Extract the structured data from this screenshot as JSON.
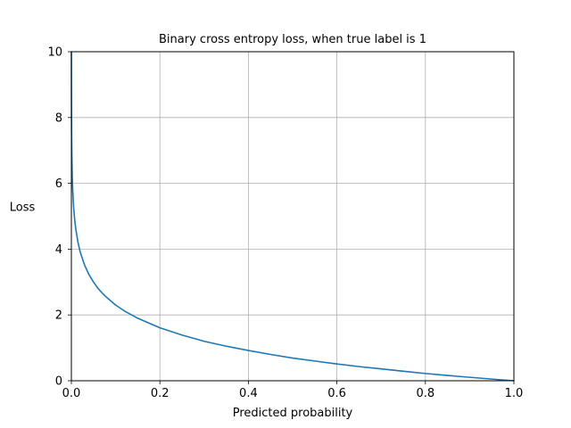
{
  "chart_data": {
    "type": "line",
    "title": "Binary cross entropy loss, when true label is 1",
    "xlabel": "Predicted probability",
    "ylabel": "Loss",
    "xlim": [
      0,
      1
    ],
    "ylim": [
      0,
      10
    ],
    "xticks": [
      0,
      0.2,
      0.4,
      0.6,
      0.8,
      1.0
    ],
    "xtick_labels": [
      "0.0",
      "0.2",
      "0.4",
      "0.6",
      "0.8",
      "1.0"
    ],
    "yticks": [
      0,
      2,
      4,
      6,
      8,
      10
    ],
    "ytick_labels": [
      "0",
      "2",
      "4",
      "6",
      "8",
      "10"
    ],
    "grid": true,
    "series": [
      {
        "color": "#1f77b4",
        "x": [
          5e-05,
          0.0001,
          0.0002,
          0.0005,
          0.001,
          0.002,
          0.003,
          0.005,
          0.0075,
          0.01,
          0.015,
          0.02,
          0.03,
          0.04,
          0.05,
          0.06,
          0.07,
          0.08,
          0.1,
          0.12,
          0.15,
          0.2,
          0.25,
          0.3,
          0.35,
          0.4,
          0.45,
          0.5,
          0.55,
          0.6,
          0.65,
          0.7,
          0.75,
          0.8,
          0.85,
          0.9,
          0.95,
          0.99,
          1.0
        ],
        "y": [
          9.9,
          9.21,
          8.52,
          7.6,
          6.91,
          6.21,
          5.81,
          5.3,
          4.89,
          4.61,
          4.2,
          3.91,
          3.51,
          3.22,
          3.0,
          2.81,
          2.66,
          2.53,
          2.3,
          2.12,
          1.9,
          1.61,
          1.39,
          1.2,
          1.05,
          0.92,
          0.8,
          0.69,
          0.6,
          0.51,
          0.43,
          0.36,
          0.29,
          0.22,
          0.16,
          0.105,
          0.051,
          0.01,
          0.0
        ]
      }
    ]
  }
}
